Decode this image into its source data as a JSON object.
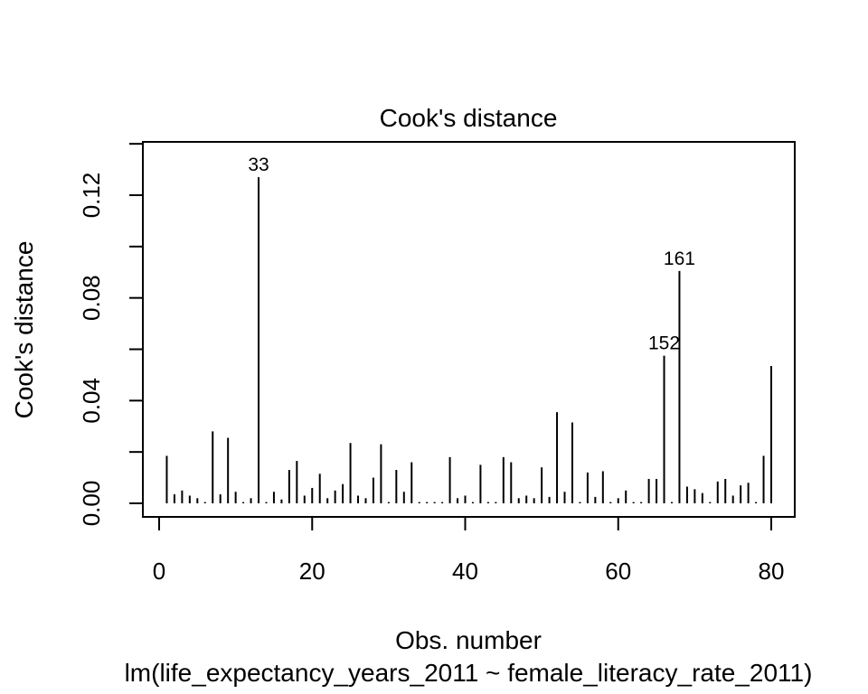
{
  "chart_data": {
    "type": "bar",
    "title": "Cook's distance",
    "xlabel": "Obs. number",
    "ylabel": "Cook's distance",
    "subtitle": "lm(life_expectancy_years_2011 ~ female_literacy_rate_2011)",
    "xlim": [
      0,
      81
    ],
    "ylim": [
      0,
      0.14
    ],
    "x_ticks": [
      0,
      20,
      40,
      60,
      80
    ],
    "y_ticks": [
      "0.00",
      "0.04",
      "0.08",
      "0.12"
    ],
    "y_tick_values": [
      0.0,
      0.02,
      0.04,
      0.06,
      0.08,
      0.1,
      0.12,
      0.14
    ],
    "grid": false,
    "x": [
      1,
      2,
      3,
      4,
      5,
      6,
      7,
      8,
      9,
      10,
      11,
      12,
      13,
      14,
      15,
      16,
      17,
      18,
      19,
      20,
      21,
      22,
      23,
      24,
      25,
      26,
      27,
      28,
      29,
      30,
      31,
      32,
      33,
      34,
      35,
      36,
      37,
      38,
      39,
      40,
      41,
      42,
      43,
      44,
      45,
      46,
      47,
      48,
      49,
      50,
      51,
      52,
      53,
      54,
      55,
      56,
      57,
      58,
      59,
      60,
      61,
      62,
      63,
      64,
      65,
      66,
      67,
      68,
      69,
      70,
      71,
      72,
      73,
      74,
      75,
      76,
      77,
      78,
      79,
      80
    ],
    "values": [
      0.0185,
      0.0035,
      0.005,
      0.003,
      0.002,
      0.0005,
      0.028,
      0.0035,
      0.0255,
      0.0045,
      0.0005,
      0.002,
      0.127,
      0.0005,
      0.0045,
      0.0015,
      0.013,
      0.0165,
      0.003,
      0.006,
      0.0115,
      0.002,
      0.005,
      0.0075,
      0.0235,
      0.003,
      0.002,
      0.01,
      0.023,
      0.0005,
      0.013,
      0.0045,
      0.016,
      0.0005,
      0.0005,
      0.0005,
      0.0005,
      0.018,
      0.002,
      0.003,
      0.0005,
      0.015,
      0.0005,
      0.0005,
      0.018,
      0.016,
      0.002,
      0.003,
      0.002,
      0.014,
      0.0025,
      0.0355,
      0.0045,
      0.0315,
      0.0005,
      0.012,
      0.0025,
      0.0125,
      0.0005,
      0.002,
      0.005,
      0.0005,
      0.0005,
      0.0095,
      0.0095,
      0.0575,
      0.0005,
      0.0905,
      0.0065,
      0.0055,
      0.004,
      0.0005,
      0.0085,
      0.0095,
      0.003,
      0.007,
      0.008,
      0.0005,
      0.0185,
      0.0535
    ],
    "annotations": [
      {
        "x": 13,
        "label": "33"
      },
      {
        "x": 66,
        "label": "152"
      },
      {
        "x": 68,
        "label": "161"
      }
    ]
  }
}
